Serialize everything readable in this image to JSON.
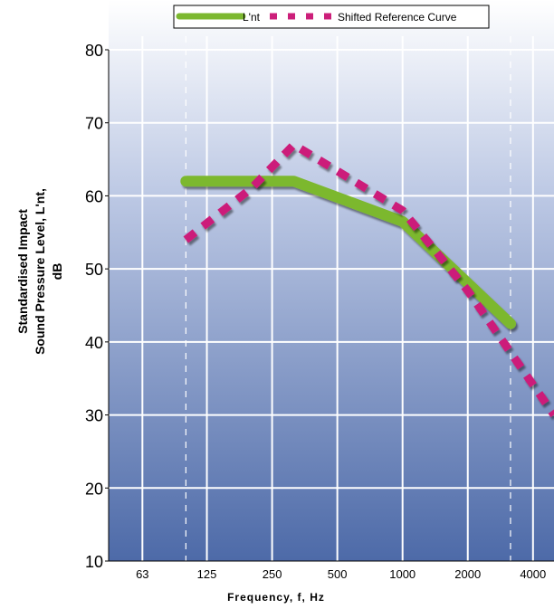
{
  "chart_data": {
    "type": "line",
    "title": "",
    "xlabel": "Frequency, f, Hz",
    "ylabel_lines": [
      "Standardised Impact",
      "Sound Pressure Level,  L'nt,",
      "dB"
    ],
    "x_scale": "log2",
    "x_ticks": [
      63,
      125,
      250,
      500,
      1000,
      2000,
      4000
    ],
    "x_tick_labels": [
      "63",
      "125",
      "250",
      "500",
      "1000",
      "2000",
      "4000"
    ],
    "xlim": [
      44,
      5000
    ],
    "y_ticks": [
      10,
      20,
      30,
      40,
      50,
      60,
      70,
      80
    ],
    "y_tick_labels": [
      "10",
      "20",
      "30",
      "40",
      "50",
      "60",
      "70",
      "80"
    ],
    "ylim": [
      10,
      80
    ],
    "grid": true,
    "reference_lines_x": [
      100,
      3150
    ],
    "legend_position": "top-center",
    "series": [
      {
        "name": "L'nt",
        "style": "solid",
        "color": "#7cb82f",
        "x": [
          100,
          315,
          1000,
          3150
        ],
        "values": [
          62,
          62,
          56.5,
          42.5
        ]
      },
      {
        "name": "Shifted Reference Curve",
        "style": "dashed",
        "color": "#cc1f7a",
        "x": [
          100,
          200,
          315,
          1000,
          2000,
          5000
        ],
        "values": [
          54,
          61,
          67,
          58,
          47,
          30
        ]
      }
    ]
  }
}
